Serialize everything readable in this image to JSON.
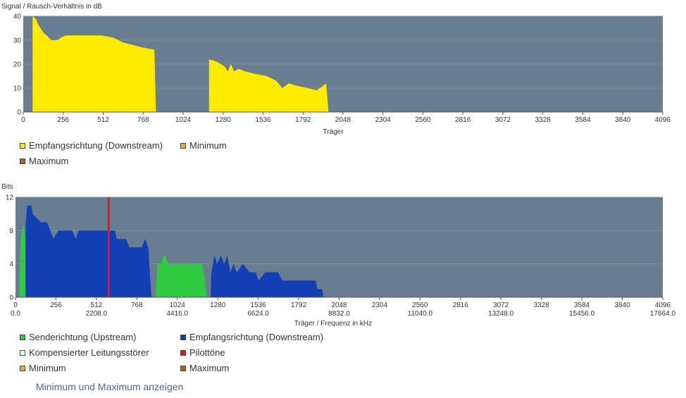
{
  "snr_chart": {
    "chart_data": {
      "type": "area",
      "ylabel": "Signal / Rausch-Verhältnis in dB",
      "xlabel": "Träger",
      "xlim": [
        0,
        4096
      ],
      "ylim": [
        0,
        40
      ],
      "yticks": [
        0,
        10,
        20,
        30,
        40
      ],
      "xticks": [
        0,
        256,
        512,
        768,
        1024,
        1280,
        1536,
        1792,
        2048,
        2304,
        2560,
        2816,
        3072,
        3328,
        3584,
        3840,
        4096
      ],
      "grid": true,
      "series": [
        {
          "name": "Empfangsrichtung (Downstream)",
          "color": "#ffeb00",
          "points": [
            [
              60,
              0
            ],
            [
              60,
              40
            ],
            [
              80,
              39
            ],
            [
              100,
              36
            ],
            [
              130,
              33
            ],
            [
              150,
              32
            ],
            [
              180,
              30
            ],
            [
              220,
              30
            ],
            [
              240,
              31
            ],
            [
              270,
              32
            ],
            [
              330,
              32
            ],
            [
              420,
              32
            ],
            [
              500,
              32
            ],
            [
              580,
              31
            ],
            [
              640,
              29
            ],
            [
              700,
              28
            ],
            [
              760,
              27
            ],
            [
              840,
              26
            ],
            [
              850,
              0
            ],
            [
              1190,
              0
            ],
            [
              1190,
              22
            ],
            [
              1240,
              21
            ],
            [
              1290,
              19
            ],
            [
              1310,
              17
            ],
            [
              1330,
              20
            ],
            [
              1350,
              17
            ],
            [
              1380,
              18
            ],
            [
              1420,
              17
            ],
            [
              1480,
              16
            ],
            [
              1560,
              15
            ],
            [
              1620,
              13
            ],
            [
              1660,
              10
            ],
            [
              1700,
              12
            ],
            [
              1750,
              11
            ],
            [
              1820,
              10
            ],
            [
              1880,
              9
            ],
            [
              1940,
              12
            ],
            [
              1955,
              0
            ]
          ]
        }
      ]
    },
    "legend": {
      "downstream": "Empfangsrichtung (Downstream)",
      "minimum": "Minimum",
      "maximum": "Maximum"
    }
  },
  "bits_chart": {
    "chart_data": {
      "type": "area",
      "ylabel": "Bits",
      "xlabel": "Träger / Frequenz in kHz",
      "xlim": [
        0,
        4096
      ],
      "ylim": [
        0,
        12
      ],
      "yticks": [
        0,
        4,
        8,
        12
      ],
      "xticks": [
        0,
        256,
        512,
        768,
        1024,
        1280,
        1536,
        1792,
        2048,
        2304,
        2560,
        2816,
        3072,
        3328,
        3584,
        3840,
        4096
      ],
      "freq_ticks": [
        {
          "carrier": 0,
          "label": "0.0"
        },
        {
          "carrier": 512,
          "label": "2208.0"
        },
        {
          "carrier": 1024,
          "label": "4416.0"
        },
        {
          "carrier": 1536,
          "label": "6624.0"
        },
        {
          "carrier": 2048,
          "label": "8832.0"
        },
        {
          "carrier": 2560,
          "label": "11040.0"
        },
        {
          "carrier": 3072,
          "label": "13248.0"
        },
        {
          "carrier": 3584,
          "label": "15456.0"
        },
        {
          "carrier": 4096,
          "label": "17664.0"
        }
      ],
      "grid": true,
      "series": [
        {
          "name": "Senderichtung (Upstream)",
          "color": "#2ecc40",
          "points": [
            [
              25,
              0
            ],
            [
              30,
              6
            ],
            [
              40,
              8
            ],
            [
              50,
              9
            ],
            [
              60,
              7
            ],
            [
              64,
              0
            ],
            [
              885,
              0
            ],
            [
              900,
              4
            ],
            [
              920,
              4
            ],
            [
              935,
              5
            ],
            [
              950,
              5
            ],
            [
              965,
              4
            ],
            [
              1010,
              4
            ],
            [
              1100,
              4
            ],
            [
              1180,
              4
            ],
            [
              1200,
              2
            ],
            [
              1210,
              0
            ]
          ]
        },
        {
          "name": "Empfangsrichtung (Downstream)",
          "color": "#1240b4",
          "points": [
            [
              64,
              0
            ],
            [
              64,
              9
            ],
            [
              75,
              11
            ],
            [
              100,
              11
            ],
            [
              110,
              10
            ],
            [
              160,
              9
            ],
            [
              200,
              9
            ],
            [
              220,
              8
            ],
            [
              240,
              7
            ],
            [
              270,
              8
            ],
            [
              320,
              8
            ],
            [
              360,
              8
            ],
            [
              380,
              7
            ],
            [
              400,
              8
            ],
            [
              500,
              8
            ],
            [
              630,
              8
            ],
            [
              640,
              7
            ],
            [
              700,
              7
            ],
            [
              720,
              6
            ],
            [
              800,
              6
            ],
            [
              820,
              7
            ],
            [
              840,
              6
            ],
            [
              860,
              0
            ],
            [
              1235,
              0
            ],
            [
              1240,
              3
            ],
            [
              1260,
              5
            ],
            [
              1275,
              4
            ],
            [
              1300,
              5
            ],
            [
              1320,
              4
            ],
            [
              1340,
              5
            ],
            [
              1360,
              3
            ],
            [
              1380,
              4
            ],
            [
              1400,
              3
            ],
            [
              1440,
              4
            ],
            [
              1480,
              3
            ],
            [
              1520,
              3
            ],
            [
              1540,
              2
            ],
            [
              1580,
              3
            ],
            [
              1660,
              3
            ],
            [
              1690,
              2
            ],
            [
              1760,
              2
            ],
            [
              1900,
              2
            ],
            [
              1910,
              1
            ],
            [
              1940,
              1
            ],
            [
              1950,
              0
            ]
          ]
        },
        {
          "name": "Kompensierter Leitungsstörer",
          "color": "#ffffff",
          "points": []
        },
        {
          "name": "Pilottöne",
          "color": "#ee1122",
          "markers_x": [
            590
          ]
        }
      ]
    },
    "legend": {
      "upstream": "Senderichtung (Upstream)",
      "downstream": "Empfangsrichtung (Downstream)",
      "compensated": "Kompensierter Leitungsstörer",
      "pilot": "Pilottöne",
      "minimum": "Minimum",
      "maximum": "Maximum"
    }
  },
  "colors": {
    "plot_bg": "#687d8f",
    "upstream": "#2ecc40",
    "downstream_bits": "#1240b4",
    "downstream_snr": "#ffeb00",
    "pilot": "#ee1122",
    "compensated": "#ffffff",
    "minimum": "#f5a742",
    "maximum": "#a86030"
  },
  "toggle_link": "Minimum und Maximum anzeigen"
}
